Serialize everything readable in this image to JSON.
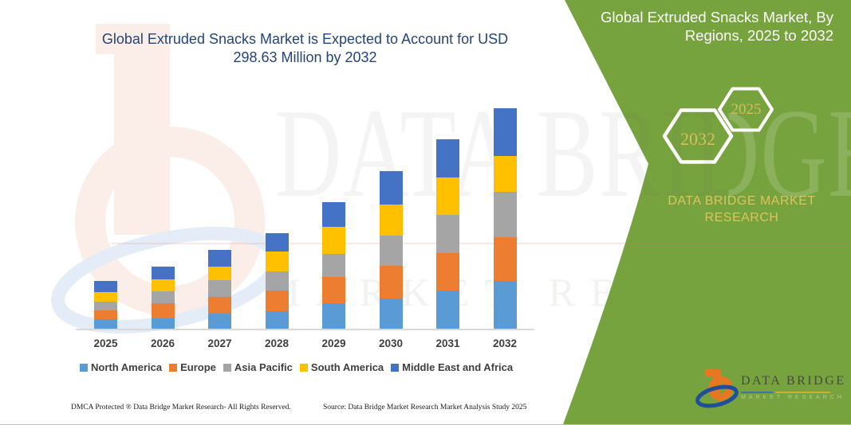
{
  "header": {
    "title_line1": "Global Extruded Snacks Market is Expected to Account for USD",
    "title_line2": "298.63 Million by 2032"
  },
  "side_panel": {
    "title_line1": "Global Extruded Snacks Market, By",
    "title_line2": "Regions, 2025 to 2032",
    "hexagons": [
      {
        "label": "2032"
      },
      {
        "label": "2025"
      }
    ],
    "brand_caption_line1": "DATA BRIDGE MARKET",
    "brand_caption_line2": "RESEARCH",
    "logo_name": "DATA BRIDGE",
    "logo_sub": "MARKET RESEARCH"
  },
  "watermarks": {
    "big_text": "DATA BRIDGE",
    "row_text": "MARKET RESEARCH"
  },
  "footer": {
    "left": "DMCA Protected ® Data Bridge Market Research-  All Rights Reserved.",
    "right": "Source: Data Bridge Market Research  Market Analysis Study 2025"
  },
  "colors": {
    "panel_green": "#76A33E",
    "title_navy": "#24457A",
    "gold": "#DDC35F",
    "axis_gray": "#D9D9D9"
  },
  "chart_data": {
    "type": "bar",
    "stacked": true,
    "title": "Global Extruded Snacks Market is Expected to Account for USD 298.63 Million by 2032",
    "xlabel": "",
    "ylabel": "USD Million",
    "unit": "USD Million",
    "grid": false,
    "y_axis_visible": false,
    "legend_position": "bottom",
    "ylim": [
      0,
      320
    ],
    "categories": [
      "2025",
      "2026",
      "2027",
      "2028",
      "2029",
      "2030",
      "2031",
      "2032"
    ],
    "series": [
      {
        "name": "North America",
        "color": "#5B9BD5",
        "values": [
          12.9,
          14.0,
          20.5,
          23.7,
          34.5,
          41.0,
          51.7,
          64.7
        ]
      },
      {
        "name": "Europe",
        "color": "#ED7D31",
        "values": [
          11.9,
          20.5,
          22.6,
          28.0,
          35.6,
          44.2,
          50.7,
          59.3
        ]
      },
      {
        "name": "Asia Pacific",
        "color": "#A5A5A5",
        "values": [
          11.9,
          16.2,
          22.6,
          25.9,
          31.3,
          41.0,
          51.7,
          61.4
        ]
      },
      {
        "name": "South America",
        "color": "#FFC000",
        "values": [
          12.9,
          16.2,
          18.3,
          26.9,
          36.6,
          42.0,
          50.7,
          48.5
        ]
      },
      {
        "name": "Middle East and Africa",
        "color": "#4472C4",
        "values": [
          15.1,
          17.2,
          22.6,
          24.8,
          33.4,
          45.3,
          51.7,
          64.73
        ]
      }
    ],
    "stack_totals": [
      64.7,
      84.1,
      106.6,
      129.3,
      171.4,
      213.5,
      256.5,
      298.63
    ],
    "annotation": "values estimated from bar proportions; 2032 total anchored to stated USD 298.63 Million"
  }
}
